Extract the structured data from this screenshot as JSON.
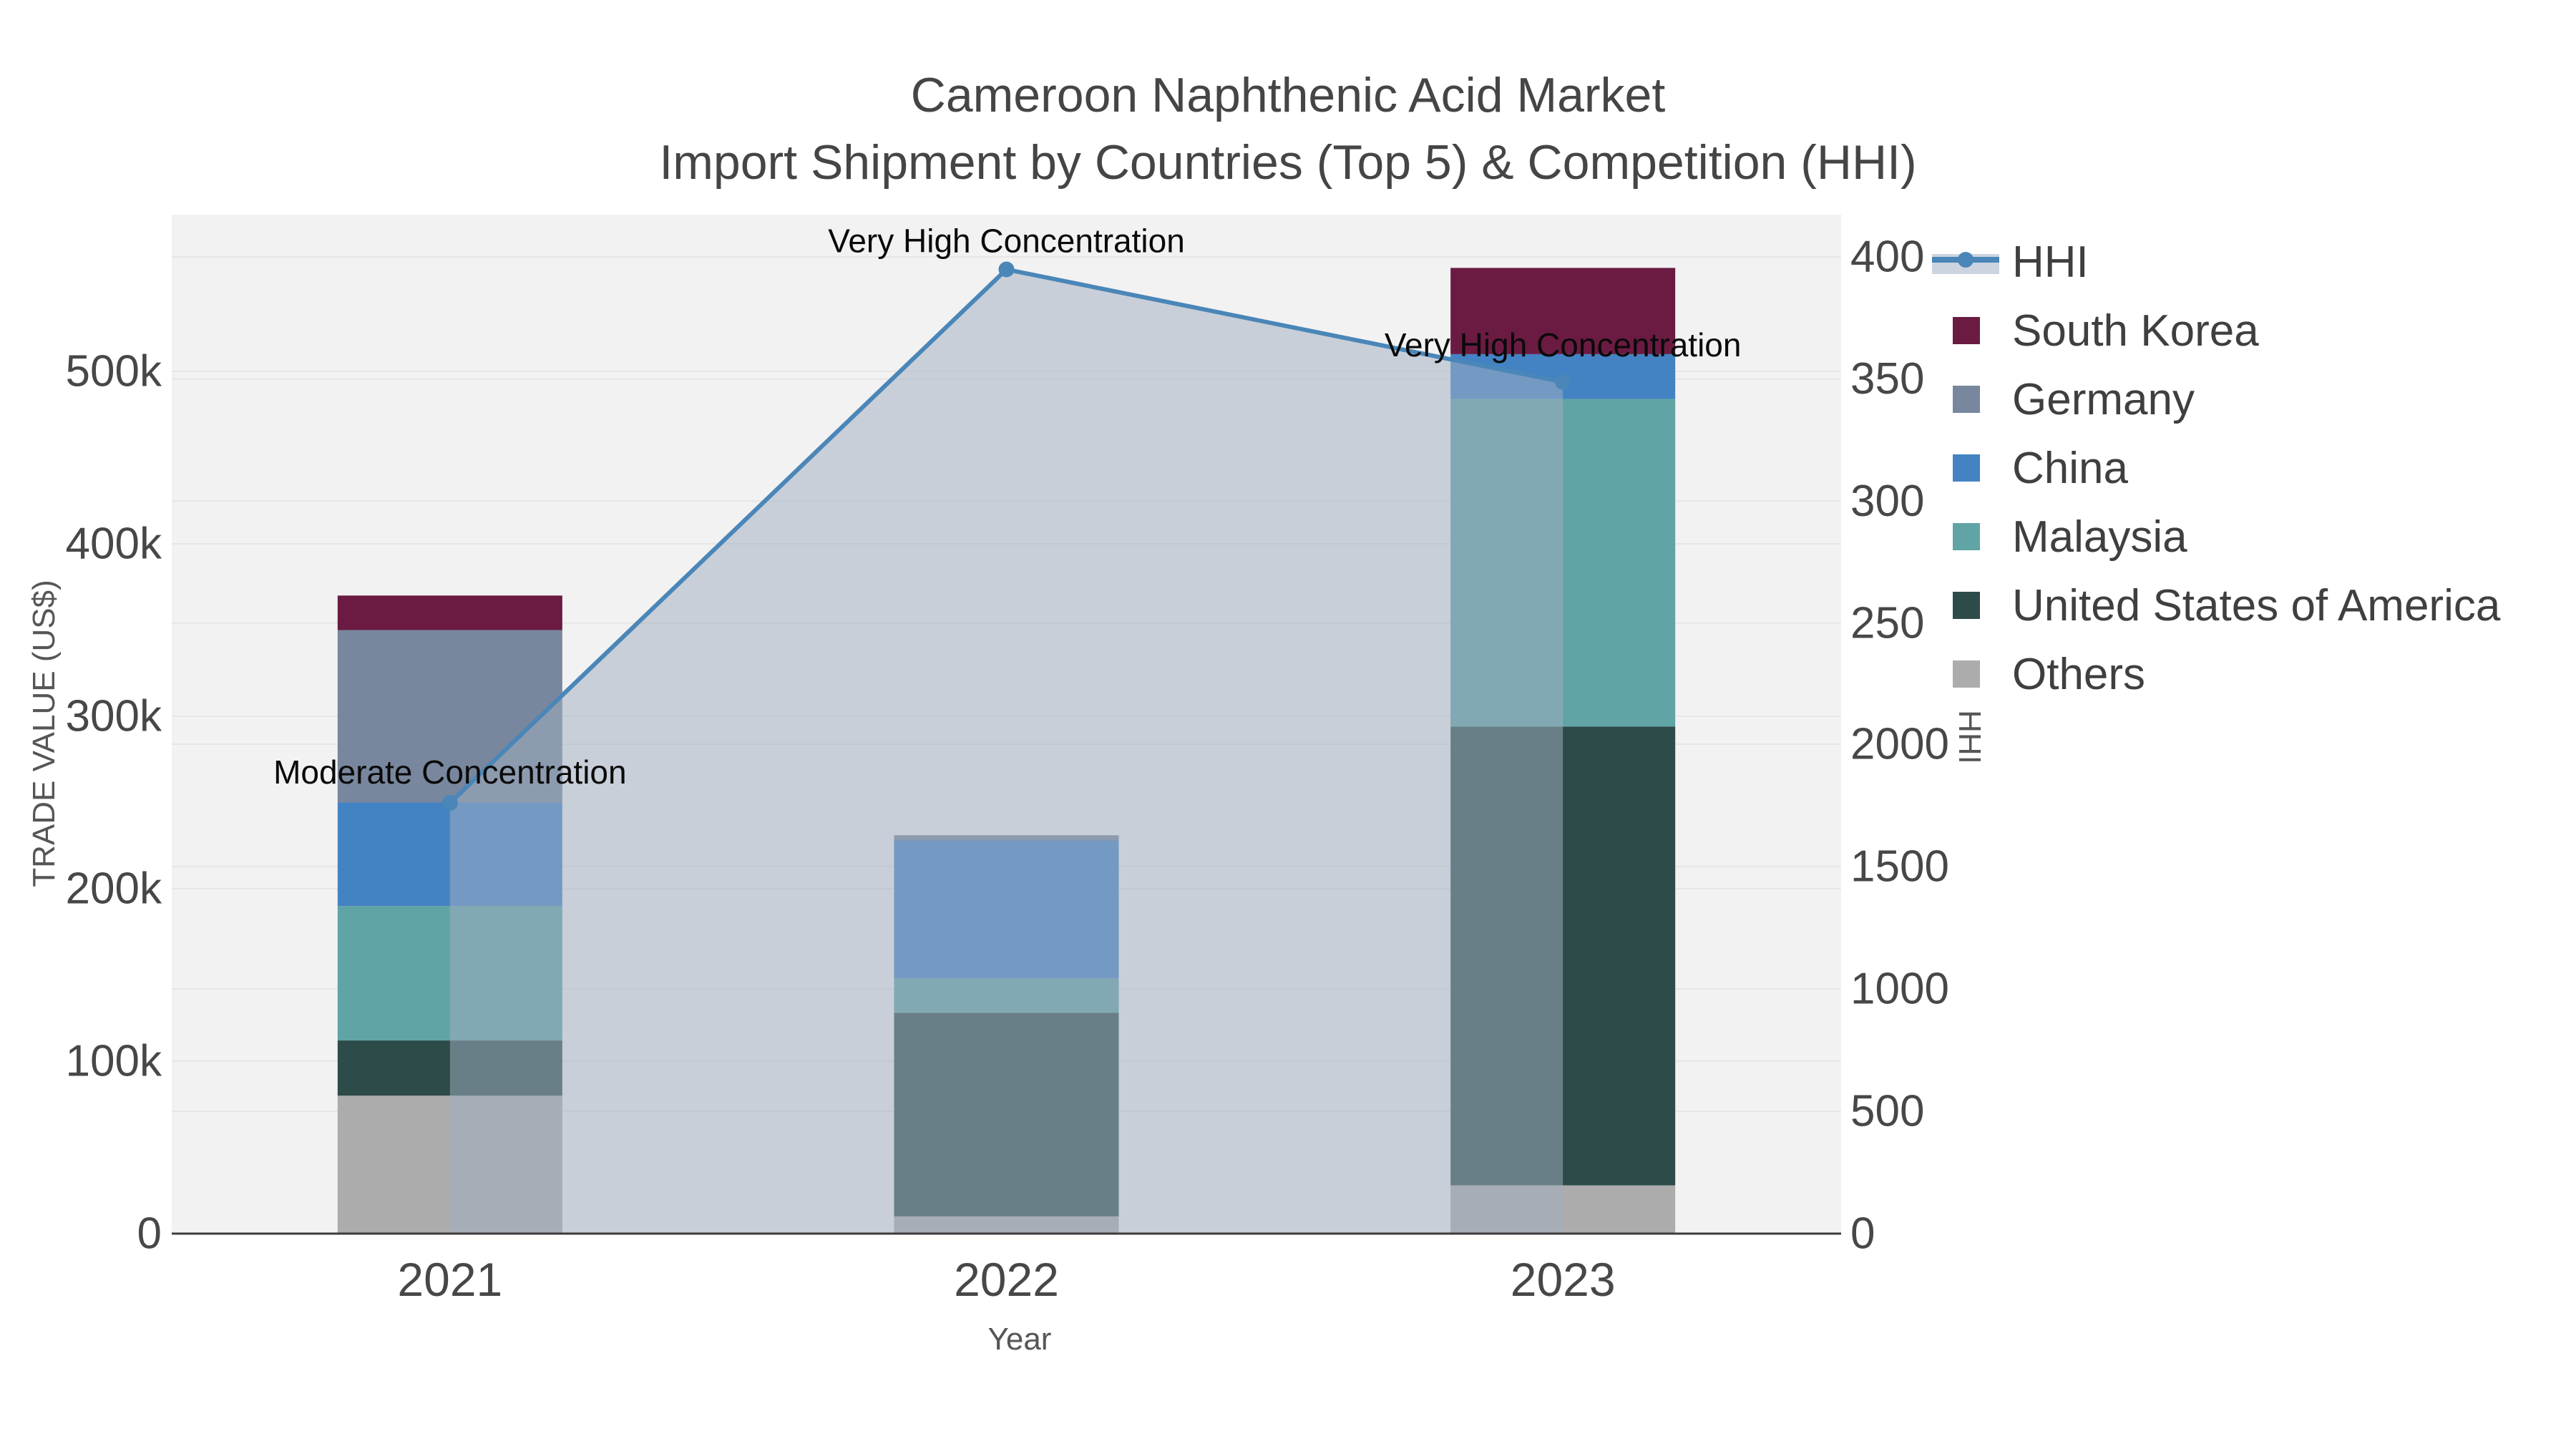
{
  "title": {
    "line1": "Cameroon Naphthenic Acid Market",
    "line2": "Import Shipment by Countries (Top 5) & Competition (HHI)"
  },
  "axes": {
    "y_left_title": "TRADE VALUE (US$)",
    "y_right_title": "HHI",
    "x_title": "Year",
    "y_left_ticks": [
      "0",
      "100k",
      "200k",
      "300k",
      "400k",
      "500k"
    ],
    "y_right_hhi_ticks": [
      "0",
      "500",
      "1000",
      "1500",
      "2000"
    ],
    "y_right_secondary_ticks": [
      "250",
      "300",
      "350",
      "400"
    ],
    "x_ticks": [
      "2021",
      "2022",
      "2023"
    ]
  },
  "legend": {
    "order": [
      "HHI",
      "South Korea",
      "Germany",
      "China",
      "Malaysia",
      "United States of America",
      "Others"
    ]
  },
  "chart_data": {
    "type": "bar+line",
    "title": "Cameroon Naphthenic Acid Market — Import Shipment by Countries (Top 5) & Competition (HHI)",
    "categories": [
      "2021",
      "2022",
      "2023"
    ],
    "xlabel": "Year",
    "ylabel_left": "TRADE VALUE (US$)",
    "ylabel_right": "HHI",
    "y_left_range": [
      0,
      590000
    ],
    "y_right_range": [
      0,
      4160
    ],
    "grid": true,
    "legend_position": "right",
    "bar_stack_order_bottom_to_top": [
      "Others",
      "United States of America",
      "Malaysia",
      "China",
      "Germany",
      "South Korea"
    ],
    "series": [
      {
        "name": "Others",
        "color": "#acacac",
        "values": [
          80000,
          10000,
          28000
        ]
      },
      {
        "name": "United States of America",
        "color": "#2d4b49",
        "values": [
          32000,
          118000,
          266000
        ]
      },
      {
        "name": "Malaysia",
        "color": "#61a4a6",
        "values": [
          78000,
          20000,
          190000
        ]
      },
      {
        "name": "China",
        "color": "#4383c4",
        "values": [
          60000,
          80000,
          26000
        ]
      },
      {
        "name": "Germany",
        "color": "#78879d",
        "values": [
          100000,
          3000,
          0
        ]
      },
      {
        "name": "South Korea",
        "color": "#6b1b41",
        "values": [
          20000,
          0,
          50000
        ]
      }
    ],
    "bar_totals": [
      370000,
      231000,
      560000
    ],
    "line_series": {
      "name": "HHI",
      "color": "#4a86b8",
      "area_fill_color": "rgba(162,175,192,0.52)",
      "values": [
        1760,
        3940,
        3480
      ]
    },
    "annotations": [
      {
        "category": "2021",
        "text": "Moderate Concentration"
      },
      {
        "category": "2022",
        "text": "Very High Concentration"
      },
      {
        "category": "2023",
        "text": "Very High Concentration"
      }
    ]
  },
  "colors": {
    "plot_background": "#f2f2f2",
    "gridline": "#e6e6e6",
    "axis_line": "#3c3c3c",
    "tick_text": "#474747",
    "annotation_text": "#0a0a0a"
  }
}
